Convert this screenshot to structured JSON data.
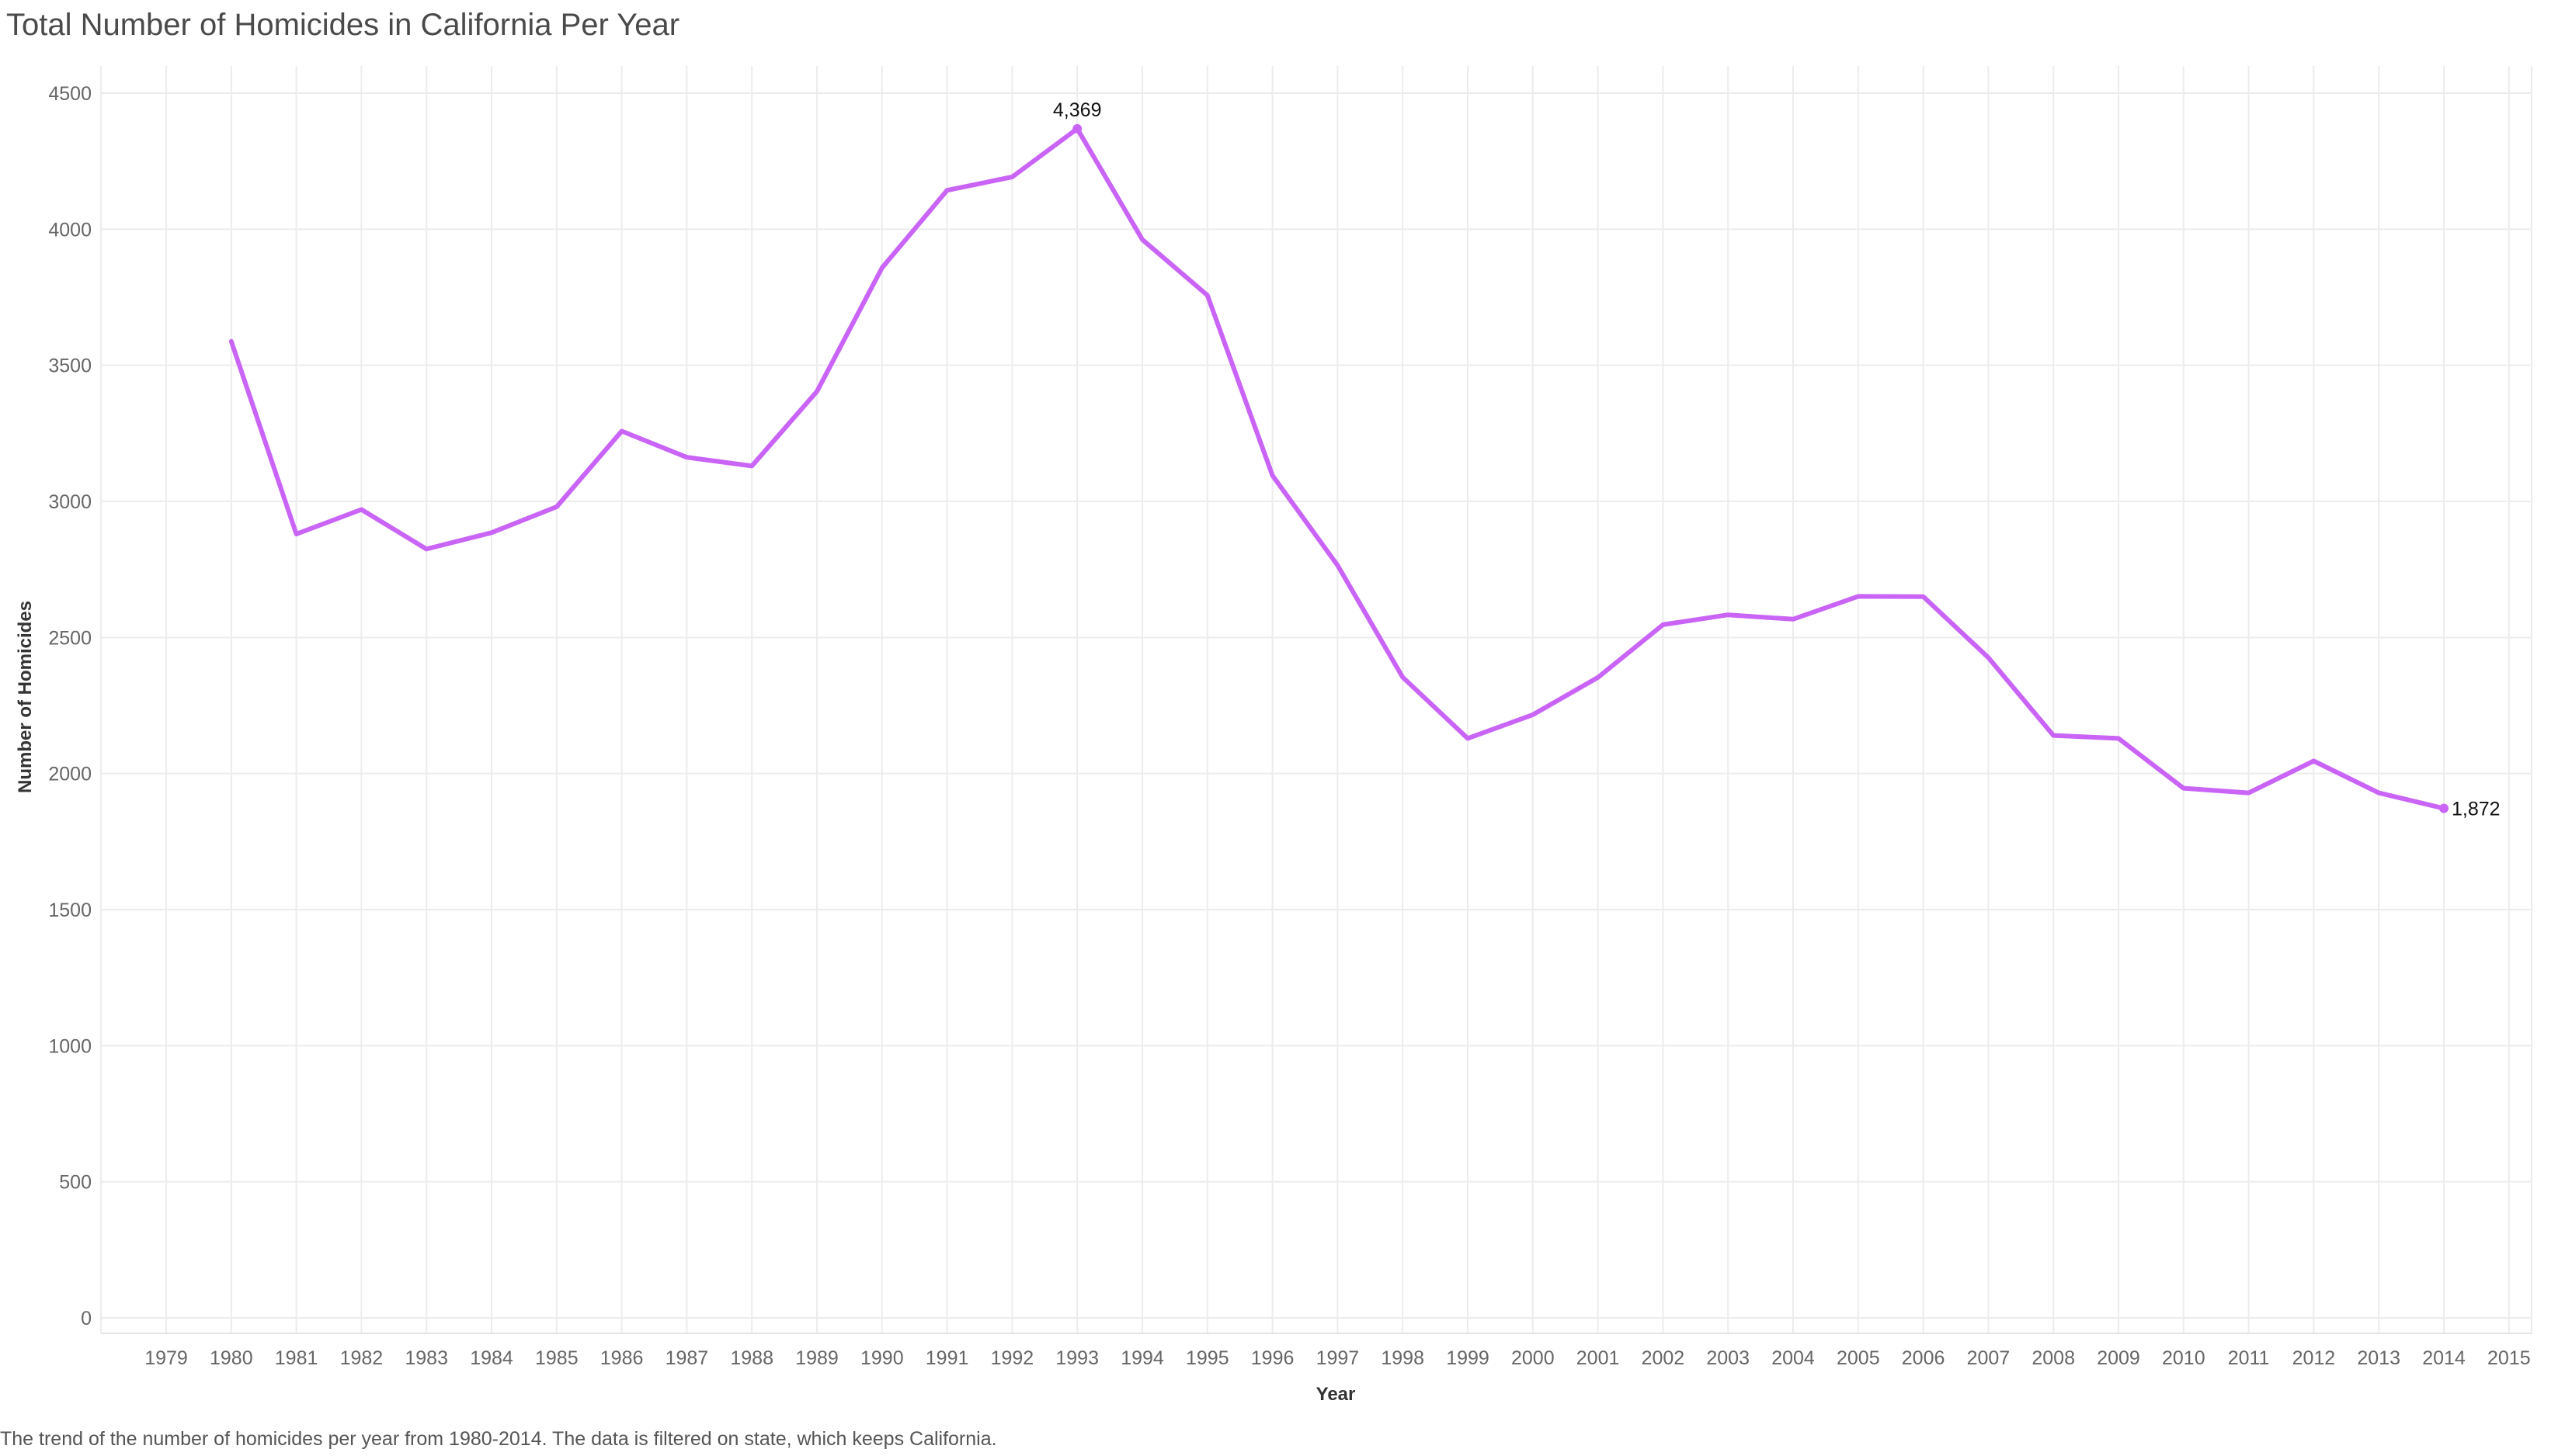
{
  "chart_data": {
    "type": "line",
    "title": "Total Number of Homicides in California Per Year",
    "xlabel": "Year",
    "ylabel": "Number of Homicides",
    "caption": "The trend of the number of homicides per year from 1980-2014.  The data is filtered on state, which keeps California.",
    "x_ticks": [
      "1979",
      "1980",
      "1981",
      "1982",
      "1983",
      "1984",
      "1985",
      "1986",
      "1987",
      "1988",
      "1989",
      "1990",
      "1991",
      "1992",
      "1993",
      "1994",
      "1995",
      "1996",
      "1997",
      "1998",
      "1999",
      "2000",
      "2001",
      "2002",
      "2003",
      "2004",
      "2005",
      "2006",
      "2007",
      "2008",
      "2009",
      "2010",
      "2011",
      "2012",
      "2013",
      "2014",
      "2015"
    ],
    "y_ticks": [
      0,
      500,
      1000,
      1500,
      2000,
      2500,
      3000,
      3500,
      4000,
      4500
    ],
    "ylim": [
      0,
      4550
    ],
    "xlim": [
      1978,
      2016
    ],
    "grid": true,
    "line_color": "#c964f6",
    "series": [
      {
        "name": "Number of Homicides",
        "x": [
          1980,
          1981,
          1982,
          1983,
          1984,
          1985,
          1986,
          1987,
          1988,
          1989,
          1990,
          1991,
          1992,
          1993,
          1994,
          1995,
          1996,
          1997,
          1998,
          1999,
          2000,
          2001,
          2002,
          2003,
          2004,
          2005,
          2006,
          2007,
          2008,
          2009,
          2010,
          2011,
          2012,
          2013,
          2014
        ],
        "values": [
          3588,
          2880,
          2970,
          2825,
          2885,
          2980,
          3258,
          3162,
          3130,
          3404,
          3858,
          4143,
          4192,
          4369,
          3962,
          3757,
          3095,
          2765,
          2354,
          2129,
          2216,
          2353,
          2547,
          2583,
          2567,
          2651,
          2650,
          2426,
          2140,
          2129,
          1946,
          1929,
          2046,
          1929,
          1872
        ]
      }
    ],
    "annotations": [
      {
        "x": 1993,
        "y": 4369,
        "label": "4,369",
        "placement": "above"
      },
      {
        "x": 2014,
        "y": 1872,
        "label": "1,872",
        "placement": "right"
      }
    ]
  }
}
